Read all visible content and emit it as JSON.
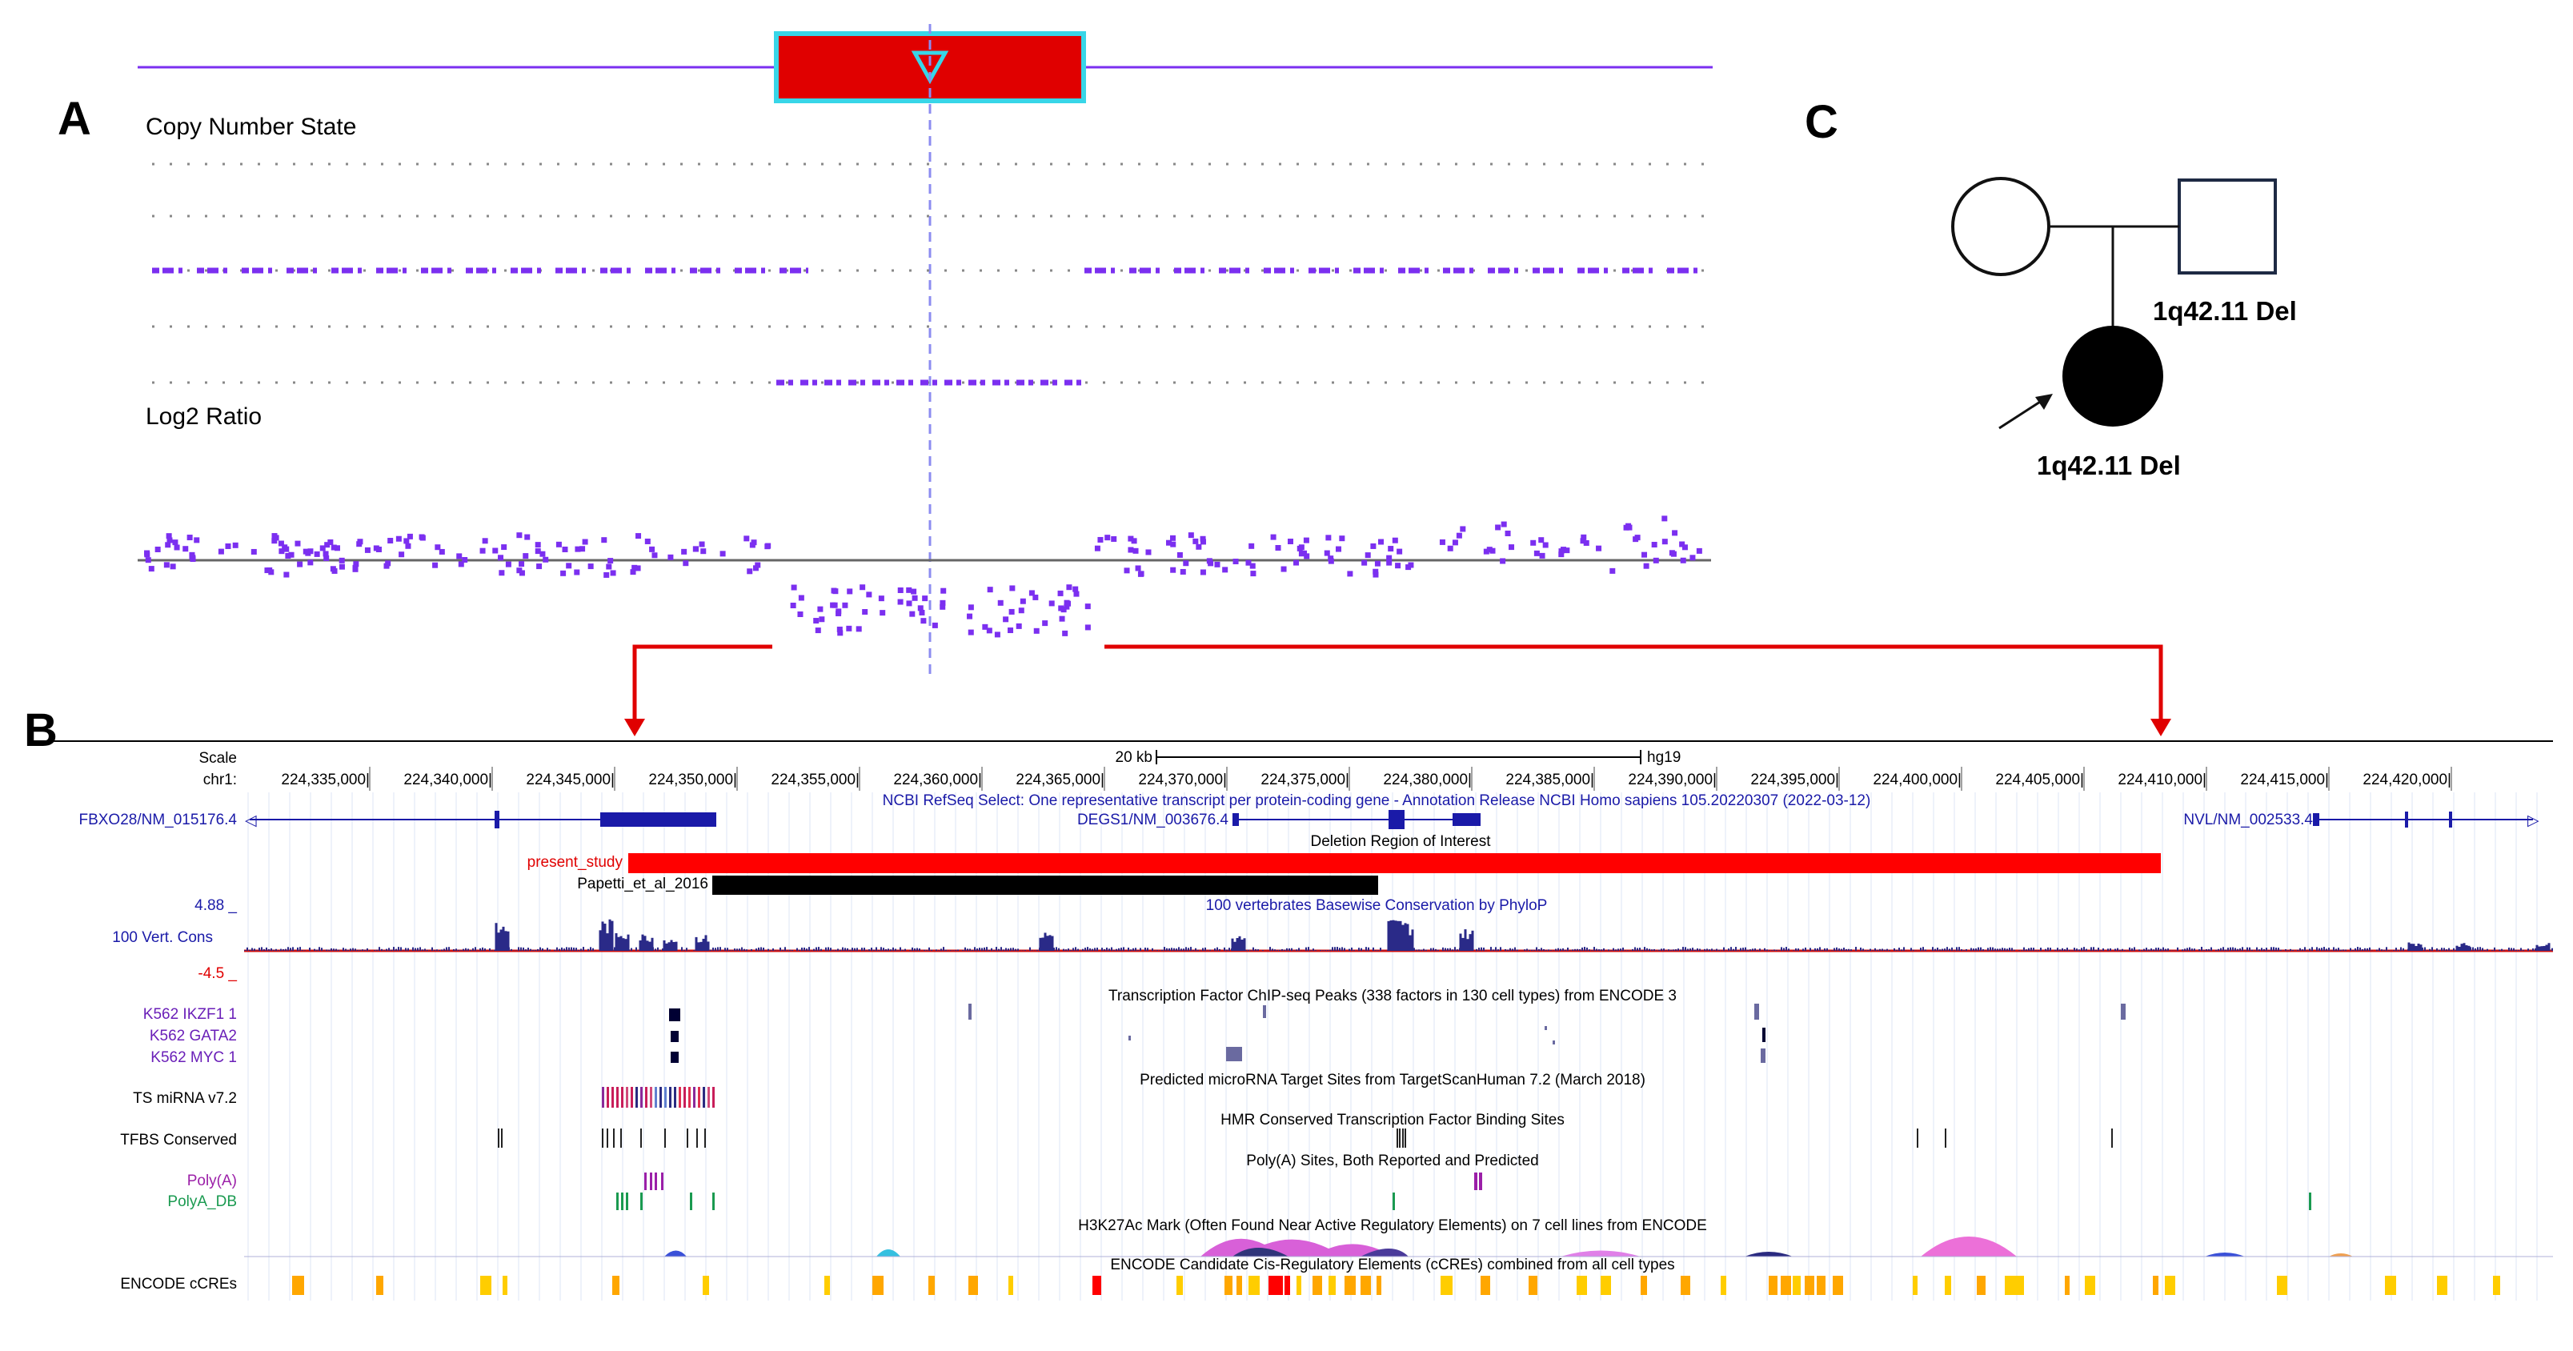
{
  "panel_labels": {
    "a": "A",
    "b": "B",
    "c": "C"
  },
  "panel_a": {
    "copy_number_label": "Copy Number State",
    "log2_label": "Log2 Ratio",
    "colors": {
      "probe": "#7b2ff0",
      "deletion_box": "#e00000",
      "box_border": "#38d6e8",
      "cursor": "#8c8cf0"
    }
  },
  "panel_b": {
    "scale_label": "Scale",
    "scale_text": "20 kb",
    "assembly": "hg19",
    "chrom_label": "chr1:",
    "coords": [
      "224,335,000|",
      "224,340,000|",
      "224,345,000|",
      "224,350,000|",
      "224,355,000|",
      "224,360,000|",
      "224,365,000|",
      "224,370,000|",
      "224,375,000|",
      "224,380,000|",
      "224,385,000|",
      "224,390,000|",
      "224,395,000|",
      "224,400,000|",
      "224,405,000|",
      "224,410,000|",
      "224,415,000|",
      "224,420,000|"
    ],
    "refseq_title": "NCBI RefSeq Select: One representative transcript per protein-coding gene - Annotation Release NCBI Homo sapiens 105.20220307 (2022-03-12)",
    "genes": {
      "left": "FBXO28/NM_015176.4",
      "mid": "DEGS1/NM_003676.4",
      "right": "NVL/NM_002533.4"
    },
    "deletion_title": "Deletion Region of Interest",
    "present_study": "present_study",
    "papetti": "Papetti_et_al_2016",
    "cons_max": "4.88 _",
    "cons_label": "100 Vert. Cons",
    "cons_min": "-4.5 _",
    "cons_title": "100 vertebrates Basewise Conservation by PhyloP",
    "tf_title": "Transcription Factor ChIP-seq Peaks (338 factors in 130 cell types) from ENCODE 3",
    "tf_tracks": [
      "K562 IKZF1 1",
      "K562 GATA2",
      "K562 MYC 1"
    ],
    "mirna_label": "TS miRNA v7.2",
    "mirna_title": "Predicted microRNA Target Sites from TargetScanHuman 7.2 (March 2018)",
    "tfbs_label": "TFBS Conserved",
    "tfbs_title": "HMR Conserved Transcription Factor Binding Sites",
    "polya_label": "Poly(A)",
    "polyadb_label": "PolyA_DB",
    "polya_title": "Poly(A) Sites, Both Reported and Predicted",
    "h3k_title": "H3K27Ac Mark (Often Found Near Active Regulatory Elements) on 7 cell lines from ENCODE",
    "ccre_title": "ENCODE Candidate Cis-Regulatory Elements (cCREs) combined from all cell types",
    "ccre_label": "ENCODE cCREs"
  },
  "panel_c": {
    "father_label": "1q42.11 Del",
    "proband_label": "1q42.11 Del"
  }
}
